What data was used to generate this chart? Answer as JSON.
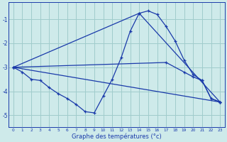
{
  "title": "Graphe des températures (°c)",
  "bg_color": "#ceeaea",
  "grid_color": "#a0cccc",
  "line_color": "#1a3aaa",
  "xlim": [
    -0.5,
    23.5
  ],
  "ylim": [
    -5.5,
    -0.3
  ],
  "yticks": [
    -5,
    -4,
    -3,
    -2,
    -1
  ],
  "xtick_labels": [
    "0",
    "1",
    "2",
    "3",
    "4",
    "5",
    "6",
    "7",
    "8",
    "9",
    "10",
    "11",
    "12",
    "13",
    "14",
    "15",
    "16",
    "17",
    "18",
    "19",
    "20",
    "21",
    "22",
    "23"
  ],
  "line1_x": [
    0,
    1,
    2,
    3,
    4,
    5,
    6,
    7,
    8,
    9,
    10,
    11,
    12,
    13,
    14,
    15,
    16,
    17,
    18,
    19,
    20,
    21,
    22,
    23
  ],
  "line1_y": [
    -3.0,
    -3.2,
    -3.5,
    -3.55,
    -3.85,
    -4.1,
    -4.3,
    -4.55,
    -4.85,
    -4.9,
    -4.2,
    -3.5,
    -2.6,
    -1.5,
    -0.75,
    -0.65,
    -0.8,
    -1.3,
    -1.9,
    -2.7,
    -3.3,
    -3.55,
    -4.3,
    -4.45
  ],
  "line2_x": [
    0,
    23
  ],
  "line2_y": [
    -3.0,
    -4.45
  ],
  "line3_x": [
    0,
    14,
    23
  ],
  "line3_y": [
    -3.0,
    -0.75,
    -4.45
  ],
  "line4_x": [
    0,
    17,
    19,
    20,
    21,
    22,
    23
  ],
  "line4_y": [
    -3.0,
    -2.8,
    -3.2,
    -3.4,
    -3.55,
    -4.3,
    -4.45
  ]
}
